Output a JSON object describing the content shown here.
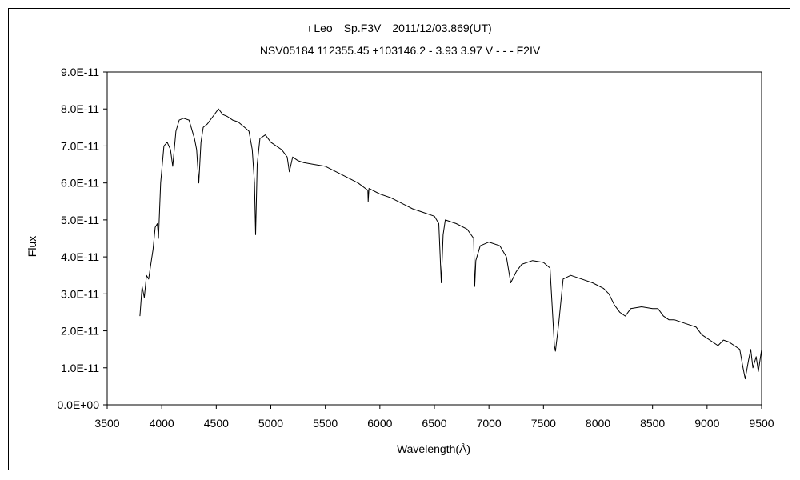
{
  "chart_data": {
    "type": "line",
    "title": "ι Leo　Sp.F3V　2011/12/03.869(UT)",
    "subtitle": "NSV05184 112355.45 +103146.2 - 3.93 3.97 V - - - F2IV",
    "xlabel": "Wavelength(Å)",
    "ylabel": "Flux",
    "xlim": [
      3500,
      9500
    ],
    "ylim": [
      0,
      9e-11
    ],
    "x_ticks": [
      "3500",
      "4000",
      "4500",
      "5000",
      "5500",
      "6000",
      "6500",
      "7000",
      "7500",
      "8000",
      "8500",
      "9000",
      "9500"
    ],
    "y_ticks": [
      "0.0E+00",
      "1.0E-11",
      "2.0E-11",
      "3.0E-11",
      "4.0E-11",
      "5.0E-11",
      "6.0E-11",
      "7.0E-11",
      "8.0E-11",
      "9.0E-11"
    ],
    "grid": false,
    "legend": "none",
    "series": [
      {
        "color": "#000000",
        "points": [
          [
            3800,
            2.4e-11
          ],
          [
            3820,
            3.2e-11
          ],
          [
            3840,
            2.9e-11
          ],
          [
            3860,
            3.5e-11
          ],
          [
            3880,
            3.4e-11
          ],
          [
            3900,
            3.8e-11
          ],
          [
            3920,
            4.2e-11
          ],
          [
            3940,
            4.8e-11
          ],
          [
            3960,
            4.9e-11
          ],
          [
            3970,
            4.5e-11
          ],
          [
            3990,
            6e-11
          ],
          [
            4020,
            7e-11
          ],
          [
            4050,
            7.1e-11
          ],
          [
            4080,
            6.9e-11
          ],
          [
            4101,
            6.45e-11
          ],
          [
            4130,
            7.4e-11
          ],
          [
            4160,
            7.7e-11
          ],
          [
            4200,
            7.75e-11
          ],
          [
            4250,
            7.7e-11
          ],
          [
            4300,
            7.2e-11
          ],
          [
            4320,
            6.9e-11
          ],
          [
            4340,
            6e-11
          ],
          [
            4360,
            7.1e-11
          ],
          [
            4380,
            7.5e-11
          ],
          [
            4420,
            7.6e-11
          ],
          [
            4470,
            7.8e-11
          ],
          [
            4520,
            8e-11
          ],
          [
            4560,
            7.85e-11
          ],
          [
            4600,
            7.8e-11
          ],
          [
            4650,
            7.7e-11
          ],
          [
            4700,
            7.65e-11
          ],
          [
            4760,
            7.5e-11
          ],
          [
            4800,
            7.4e-11
          ],
          [
            4830,
            6.9e-11
          ],
          [
            4850,
            6e-11
          ],
          [
            4861,
            4.6e-11
          ],
          [
            4875,
            6.5e-11
          ],
          [
            4900,
            7.2e-11
          ],
          [
            4950,
            7.3e-11
          ],
          [
            5000,
            7.1e-11
          ],
          [
            5050,
            7e-11
          ],
          [
            5100,
            6.9e-11
          ],
          [
            5150,
            6.7e-11
          ],
          [
            5170,
            6.3e-11
          ],
          [
            5200,
            6.7e-11
          ],
          [
            5250,
            6.6e-11
          ],
          [
            5300,
            6.55e-11
          ],
          [
            5400,
            6.5e-11
          ],
          [
            5500,
            6.45e-11
          ],
          [
            5600,
            6.3e-11
          ],
          [
            5700,
            6.15e-11
          ],
          [
            5800,
            6e-11
          ],
          [
            5890,
            5.8e-11
          ],
          [
            5893,
            5.5e-11
          ],
          [
            5900,
            5.85e-11
          ],
          [
            6000,
            5.7e-11
          ],
          [
            6100,
            5.6e-11
          ],
          [
            6200,
            5.45e-11
          ],
          [
            6300,
            5.3e-11
          ],
          [
            6400,
            5.2e-11
          ],
          [
            6500,
            5.1e-11
          ],
          [
            6540,
            4.9e-11
          ],
          [
            6563,
            3.3e-11
          ],
          [
            6580,
            4.6e-11
          ],
          [
            6600,
            5e-11
          ],
          [
            6700,
            4.9e-11
          ],
          [
            6800,
            4.75e-11
          ],
          [
            6860,
            4.5e-11
          ],
          [
            6870,
            3.2e-11
          ],
          [
            6880,
            3.9e-11
          ],
          [
            6920,
            4.3e-11
          ],
          [
            7000,
            4.4e-11
          ],
          [
            7100,
            4.3e-11
          ],
          [
            7160,
            4e-11
          ],
          [
            7200,
            3.3e-11
          ],
          [
            7250,
            3.6e-11
          ],
          [
            7300,
            3.8e-11
          ],
          [
            7400,
            3.9e-11
          ],
          [
            7500,
            3.85e-11
          ],
          [
            7560,
            3.7e-11
          ],
          [
            7600,
            1.6e-11
          ],
          [
            7610,
            1.45e-11
          ],
          [
            7640,
            2.2e-11
          ],
          [
            7680,
            3.4e-11
          ],
          [
            7750,
            3.5e-11
          ],
          [
            7850,
            3.4e-11
          ],
          [
            7950,
            3.3e-11
          ],
          [
            8050,
            3.15e-11
          ],
          [
            8100,
            3e-11
          ],
          [
            8150,
            2.7e-11
          ],
          [
            8200,
            2.5e-11
          ],
          [
            8250,
            2.4e-11
          ],
          [
            8300,
            2.6e-11
          ],
          [
            8400,
            2.65e-11
          ],
          [
            8500,
            2.6e-11
          ],
          [
            8550,
            2.6e-11
          ],
          [
            8600,
            2.4e-11
          ],
          [
            8650,
            2.3e-11
          ],
          [
            8700,
            2.3e-11
          ],
          [
            8800,
            2.2e-11
          ],
          [
            8900,
            2.1e-11
          ],
          [
            8950,
            1.9e-11
          ],
          [
            9000,
            1.8e-11
          ],
          [
            9050,
            1.7e-11
          ],
          [
            9100,
            1.6e-11
          ],
          [
            9150,
            1.75e-11
          ],
          [
            9200,
            1.7e-11
          ],
          [
            9250,
            1.6e-11
          ],
          [
            9300,
            1.5e-11
          ],
          [
            9330,
            1e-11
          ],
          [
            9350,
            7e-12
          ],
          [
            9380,
            1.2e-11
          ],
          [
            9400,
            1.5e-11
          ],
          [
            9420,
            1e-11
          ],
          [
            9450,
            1.3e-11
          ],
          [
            9470,
            9e-12
          ],
          [
            9500,
            1.5e-11
          ]
        ]
      }
    ]
  }
}
